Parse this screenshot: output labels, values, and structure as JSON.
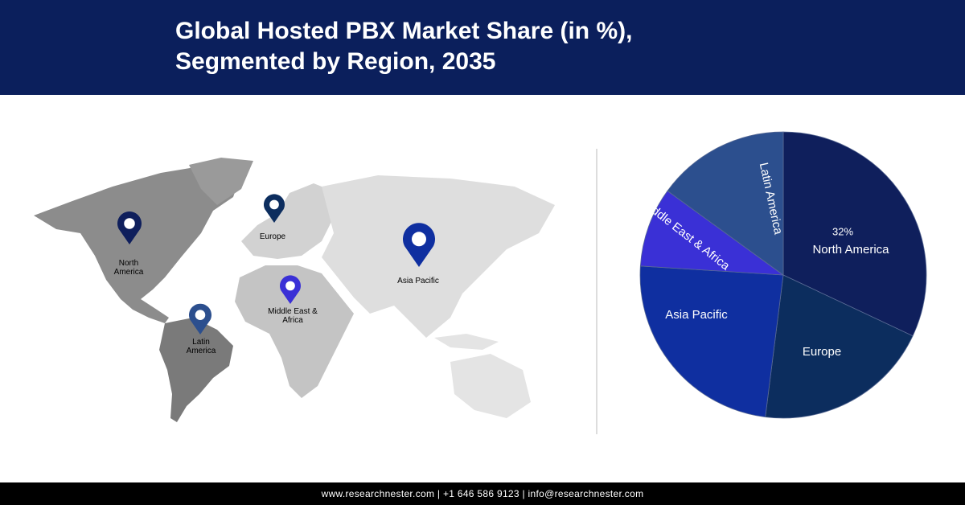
{
  "chart_data": {
    "type": "pie",
    "title": "Global Hosted PBX Market Share (in %), Segmented by Region, 2035",
    "categories": [
      "North America",
      "Europe",
      "Asia Pacific",
      "Middle East & Africa",
      "Latin America"
    ],
    "values": [
      32,
      20,
      24,
      9,
      15
    ],
    "value_labels": [
      "32%",
      null,
      null,
      null,
      null
    ],
    "colors": [
      "#0f1f5c",
      "#0c2d5e",
      "#0f2fa0",
      "#3a30d6",
      "#2c4f8e"
    ]
  },
  "footer": {
    "text": "www.researchnester.com | +1 646 586 9123 | info@researchnester.com"
  }
}
